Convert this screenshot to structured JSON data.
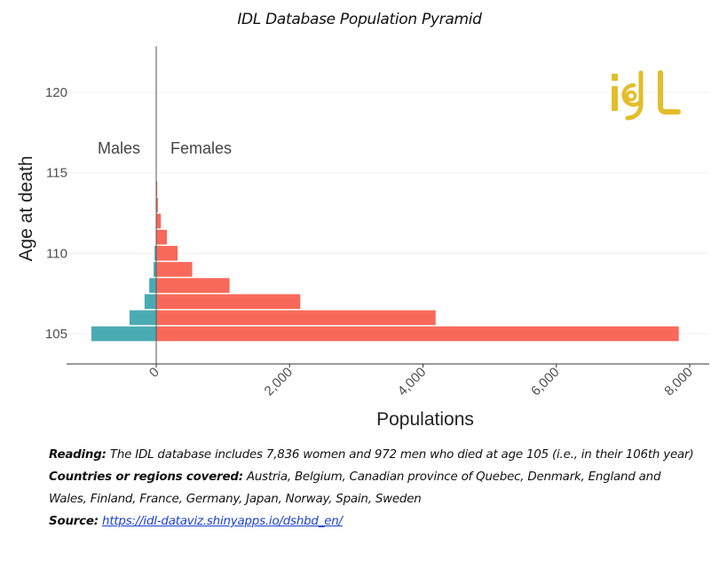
{
  "chart_data": {
    "type": "bar",
    "orientation": "horizontal",
    "subtype": "population-pyramid",
    "title": "IDL Database Population Pyramid",
    "xlabel": "Populations",
    "ylabel": "Age at death",
    "xlim": [
      -1000,
      8200
    ],
    "ylim": [
      104,
      123
    ],
    "x_ticks": [
      0,
      2000,
      4000,
      6000,
      8000
    ],
    "x_tick_labels": [
      "0",
      "2,000",
      "4,000",
      "6,000",
      "8,000"
    ],
    "y_ticks": [
      105,
      110,
      115,
      120
    ],
    "y_tick_labels": [
      "105",
      "110",
      "115",
      "120"
    ],
    "grid": true,
    "group_labels": {
      "left": "Males",
      "right": "Females"
    },
    "categories": [
      105,
      106,
      107,
      108,
      109,
      110,
      111,
      112,
      113,
      114
    ],
    "series": [
      {
        "name": "Males",
        "color": "#4AABB3",
        "values": [
          972,
          400,
          175,
          105,
          40,
          25,
          0,
          0,
          0,
          0
        ]
      },
      {
        "name": "Females",
        "color": "#F8695B",
        "values": [
          7836,
          4190,
          2160,
          1100,
          540,
          320,
          160,
          70,
          25,
          15
        ]
      }
    ]
  },
  "logo": {
    "text": "idl",
    "color": "#E3BE2B"
  },
  "caption": {
    "reading_label": "Reading:",
    "reading_text": " The IDL database includes 7,836 women and 972 men who died at age 105 (i.e., in their 106th year)",
    "countries_label": "Countries or regions covered:",
    "countries_text": " Austria, Belgium, Canadian province of Quebec, Denmark, England and Wales, Finland, France, Germany, Japan, Norway, Spain, Sweden",
    "source_label": "Source:",
    "source_link": "https://idl-dataviz.shinyapps.io/dshbd_en/"
  }
}
